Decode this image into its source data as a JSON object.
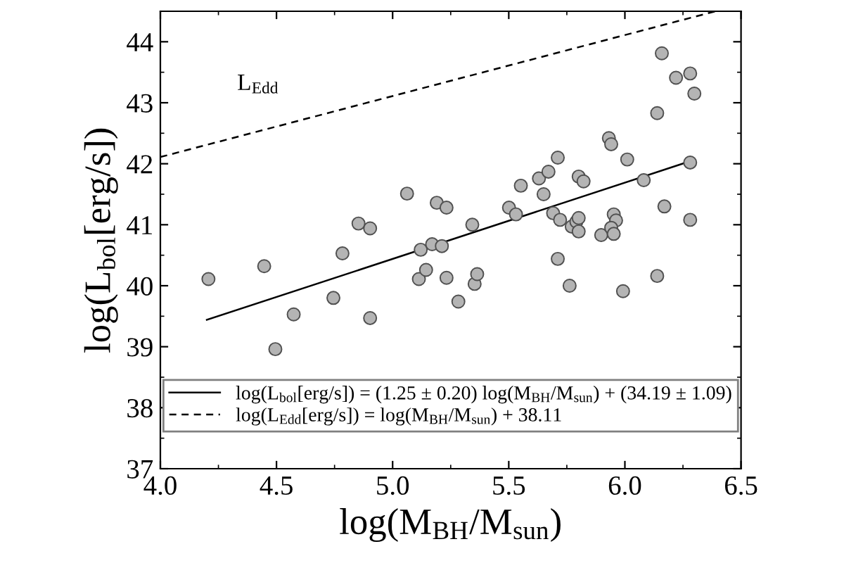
{
  "chart_data": {
    "type": "scatter",
    "xlabel": "log(M$_{BH}$/M$_{sun}$)",
    "ylabel": "log(L$_{bol}$[erg/s])",
    "xlim": [
      4.0,
      6.5
    ],
    "ylim": [
      37,
      44.5
    ],
    "xticks": [
      {
        "value": 4.0,
        "label": "4.0"
      },
      {
        "value": 4.5,
        "label": "4.5"
      },
      {
        "value": 5.0,
        "label": "5.0"
      },
      {
        "value": 5.5,
        "label": "5.5"
      },
      {
        "value": 6.0,
        "label": "6.0"
      },
      {
        "value": 6.5,
        "label": "6.5"
      }
    ],
    "yticks": [
      37,
      38,
      39,
      40,
      41,
      42,
      43,
      44
    ],
    "grid": false,
    "legend": "bottom",
    "annotations": [
      "L$_{Edd}$"
    ],
    "series": [
      {
        "marker": "circle",
        "color": "#b4b4b4",
        "x": [
          4.207,
          4.447,
          4.574,
          4.495,
          4.745,
          4.784,
          4.853,
          4.903,
          4.903,
          5.062,
          5.113,
          5.121,
          5.144,
          5.17,
          5.19,
          5.212,
          5.232,
          5.232,
          5.283,
          5.343,
          5.353,
          5.364,
          5.501,
          5.531,
          5.552,
          5.63,
          5.65,
          5.671,
          5.691,
          5.711,
          5.711,
          5.721,
          5.762,
          5.771,
          5.791,
          5.801,
          5.801,
          5.801,
          5.822,
          5.898,
          5.931,
          5.941,
          5.952,
          5.962,
          5.941,
          5.952,
          5.992,
          6.01,
          6.081,
          6.139,
          6.139,
          6.159,
          6.17,
          6.22,
          6.281,
          6.281,
          6.299,
          6.281
        ],
        "values": [
          40.11,
          40.32,
          39.53,
          38.96,
          39.8,
          40.53,
          41.02,
          40.94,
          39.47,
          41.51,
          40.11,
          40.59,
          40.26,
          40.68,
          41.36,
          40.65,
          41.28,
          40.13,
          39.74,
          41.0,
          40.03,
          40.19,
          41.28,
          41.17,
          41.64,
          41.76,
          41.5,
          41.87,
          41.19,
          42.1,
          40.44,
          41.08,
          40.0,
          40.97,
          41.05,
          41.11,
          40.89,
          41.79,
          41.71,
          40.83,
          42.42,
          42.32,
          41.17,
          41.07,
          40.95,
          40.85,
          39.91,
          42.07,
          41.73,
          42.83,
          40.16,
          43.81,
          41.3,
          43.41,
          43.48,
          41.08,
          43.15,
          42.02
        ]
      },
      {
        "type": "line",
        "name": "log(L$_{bol}$[erg/s]) = (1.25 ± 0.20) log(M$_{BH}$/M$_{sun}$) + (34.19 ± 1.09)",
        "color": "#000000",
        "line_style": "solid",
        "x": [
          4.2,
          6.28
        ],
        "values": [
          39.44,
          42.04
        ]
      },
      {
        "type": "line",
        "name": "log(L$_{Edd}$[erg/s]) = log(M$_{BH}$/M$_{sun}$) + 38.11",
        "color": "#000000",
        "line_style": "dashed",
        "x": [
          4.0,
          6.39
        ],
        "values": [
          42.11,
          44.5
        ]
      }
    ]
  }
}
